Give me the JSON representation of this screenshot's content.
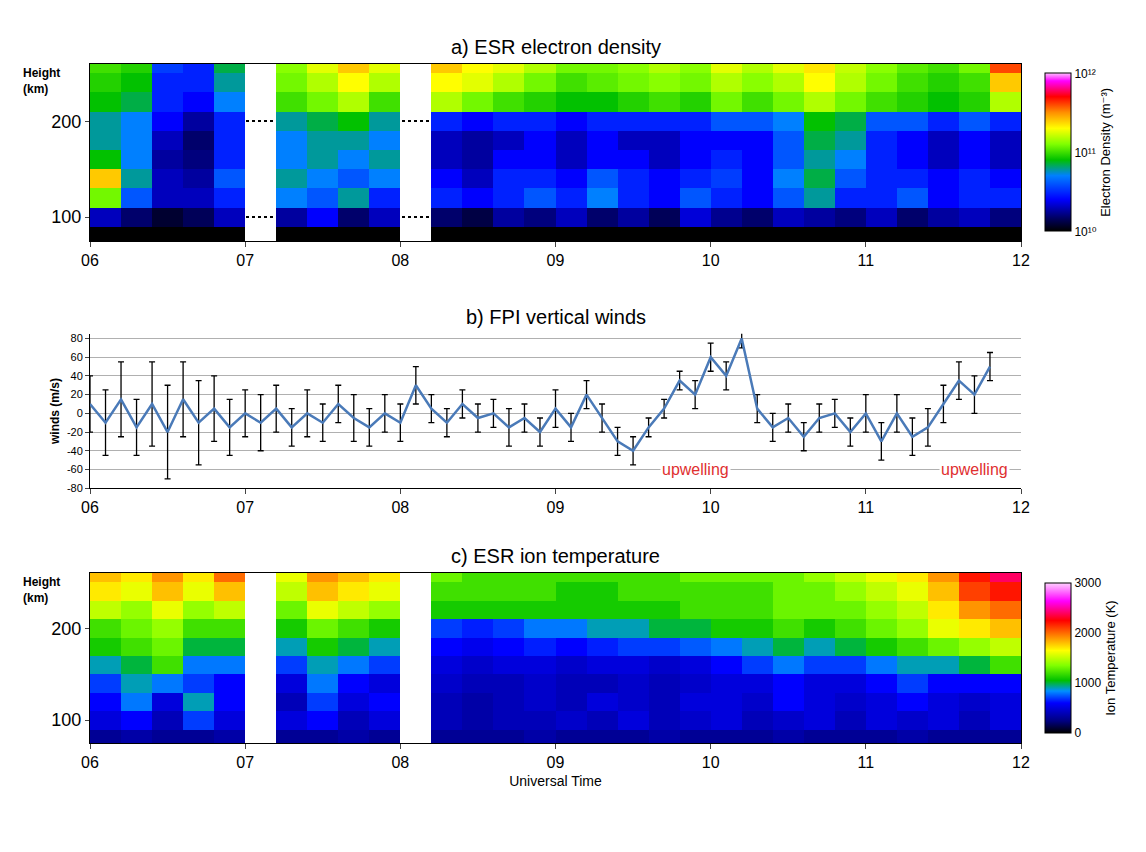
{
  "chart_data": [
    {
      "type": "heatmap",
      "title": "a) ESR electron density",
      "ylabel": "Height (km)",
      "x": [
        6.1,
        6.3,
        6.5,
        6.7,
        6.9,
        7.1,
        7.3,
        7.5,
        7.7,
        7.9,
        8.1,
        8.3,
        8.5,
        8.7,
        8.9,
        9.1,
        9.3,
        9.5,
        9.7,
        9.9,
        10.1,
        10.3,
        10.5,
        10.7,
        10.9,
        11.1,
        11.3,
        11.5,
        11.7,
        11.9
      ],
      "y": [
        80,
        100,
        120,
        140,
        160,
        180,
        200,
        220,
        240,
        260
      ],
      "z": [
        [
          8000000000.0,
          9000000000.0,
          7000000000.0,
          8000000000.0,
          9000000000.0,
          null,
          8000000000.0,
          9000000000.0,
          8000000000.0,
          9000000000.0,
          null,
          8000000000.0,
          7000000000.0,
          9000000000.0,
          8000000000.0,
          9000000000.0,
          8000000000.0,
          7000000000.0,
          8000000000.0,
          9000000000.0,
          8000000000.0,
          9000000000.0,
          8000000000.0,
          7000000000.0,
          9000000000.0,
          8000000000.0,
          9000000000.0,
          8000000000.0,
          8000000000.0,
          9000000000.0
        ],
        [
          20000000000.0,
          15000000000.0,
          12000000000.0,
          14000000000.0,
          20000000000.0,
          null,
          18000000000.0,
          25000000000.0,
          15000000000.0,
          20000000000.0,
          null,
          15000000000.0,
          13000000000.0,
          18000000000.0,
          16000000000.0,
          20000000000.0,
          15000000000.0,
          18000000000.0,
          14000000000.0,
          22000000000.0,
          17000000000.0,
          15000000000.0,
          20000000000.0,
          18000000000.0,
          16000000000.0,
          20000000000.0,
          15000000000.0,
          18000000000.0,
          20000000000.0,
          16000000000.0
        ],
        [
          120000000000.0,
          40000000000.0,
          20000000000.0,
          20000000000.0,
          30000000000.0,
          null,
          50000000000.0,
          40000000000.0,
          60000000000.0,
          30000000000.0,
          null,
          30000000000.0,
          25000000000.0,
          30000000000.0,
          40000000000.0,
          30000000000.0,
          50000000000.0,
          30000000000.0,
          25000000000.0,
          40000000000.0,
          30000000000.0,
          25000000000.0,
          40000000000.0,
          60000000000.0,
          30000000000.0,
          30000000000.0,
          40000000000.0,
          25000000000.0,
          30000000000.0,
          30000000000.0
        ],
        [
          250000000000.0,
          60000000000.0,
          20000000000.0,
          18000000000.0,
          40000000000.0,
          null,
          60000000000.0,
          50000000000.0,
          40000000000.0,
          50000000000.0,
          null,
          25000000000.0,
          20000000000.0,
          30000000000.0,
          30000000000.0,
          25000000000.0,
          40000000000.0,
          30000000000.0,
          25000000000.0,
          30000000000.0,
          35000000000.0,
          25000000000.0,
          50000000000.0,
          70000000000.0,
          40000000000.0,
          30000000000.0,
          30000000000.0,
          25000000000.0,
          30000000000.0,
          25000000000.0
        ],
        [
          80000000000.0,
          50000000000.0,
          18000000000.0,
          16000000000.0,
          30000000000.0,
          null,
          50000000000.0,
          60000000000.0,
          50000000000.0,
          60000000000.0,
          null,
          20000000000.0,
          18000000000.0,
          25000000000.0,
          25000000000.0,
          20000000000.0,
          25000000000.0,
          25000000000.0,
          20000000000.0,
          25000000000.0,
          30000000000.0,
          25000000000.0,
          40000000000.0,
          60000000000.0,
          50000000000.0,
          30000000000.0,
          25000000000.0,
          20000000000.0,
          25000000000.0,
          20000000000.0
        ],
        [
          60000000000.0,
          50000000000.0,
          20000000000.0,
          15000000000.0,
          30000000000.0,
          null,
          50000000000.0,
          60000000000.0,
          60000000000.0,
          50000000000.0,
          null,
          20000000000.0,
          18000000000.0,
          20000000000.0,
          25000000000.0,
          20000000000.0,
          25000000000.0,
          20000000000.0,
          20000000000.0,
          25000000000.0,
          25000000000.0,
          25000000000.0,
          40000000000.0,
          70000000000.0,
          60000000000.0,
          30000000000.0,
          25000000000.0,
          20000000000.0,
          25000000000.0,
          20000000000.0
        ],
        [
          60000000000.0,
          50000000000.0,
          25000000000.0,
          18000000000.0,
          30000000000.0,
          null,
          60000000000.0,
          70000000000.0,
          80000000000.0,
          60000000000.0,
          null,
          30000000000.0,
          25000000000.0,
          30000000000.0,
          30000000000.0,
          25000000000.0,
          30000000000.0,
          30000000000.0,
          30000000000.0,
          30000000000.0,
          40000000000.0,
          40000000000.0,
          50000000000.0,
          80000000000.0,
          70000000000.0,
          40000000000.0,
          40000000000.0,
          30000000000.0,
          40000000000.0,
          30000000000.0
        ],
        [
          80000000000.0,
          70000000000.0,
          30000000000.0,
          25000000000.0,
          50000000000.0,
          null,
          100000000000.0,
          120000000000.0,
          150000000000.0,
          100000000000.0,
          null,
          150000000000.0,
          120000000000.0,
          100000000000.0,
          90000000000.0,
          80000000000.0,
          80000000000.0,
          90000000000.0,
          100000000000.0,
          90000000000.0,
          120000000000.0,
          100000000000.0,
          120000000000.0,
          150000000000.0,
          120000000000.0,
          100000000000.0,
          90000000000.0,
          80000000000.0,
          90000000000.0,
          150000000000.0
        ],
        [
          90000000000.0,
          80000000000.0,
          30000000000.0,
          30000000000.0,
          60000000000.0,
          null,
          120000000000.0,
          150000000000.0,
          200000000000.0,
          150000000000.0,
          null,
          200000000000.0,
          180000000000.0,
          150000000000.0,
          120000000000.0,
          100000000000.0,
          110000000000.0,
          120000000000.0,
          130000000000.0,
          120000000000.0,
          150000000000.0,
          130000000000.0,
          150000000000.0,
          200000000000.0,
          150000000000.0,
          120000000000.0,
          100000000000.0,
          90000000000.0,
          100000000000.0,
          250000000000.0
        ],
        [
          100000000000.0,
          90000000000.0,
          35000000000.0,
          30000000000.0,
          70000000000.0,
          null,
          130000000000.0,
          180000000000.0,
          250000000000.0,
          180000000000.0,
          null,
          250000000000.0,
          200000000000.0,
          180000000000.0,
          150000000000.0,
          120000000000.0,
          120000000000.0,
          130000000000.0,
          150000000000.0,
          130000000000.0,
          180000000000.0,
          150000000000.0,
          180000000000.0,
          220000000000.0,
          160000000000.0,
          130000000000.0,
          110000000000.0,
          100000000000.0,
          120000000000.0,
          400000000000.0
        ]
      ],
      "xlim": [
        6,
        12
      ],
      "xticks": [
        {
          "value": 6,
          "label": "06"
        },
        {
          "value": 7,
          "label": "07"
        },
        {
          "value": 8,
          "label": "08"
        },
        {
          "value": 9,
          "label": "09"
        },
        10,
        11,
        12
      ],
      "ylim": [
        75,
        260
      ],
      "yticks": [
        100,
        200
      ],
      "grid": true,
      "colorbar": {
        "title": "Electron Density (m⁻³)",
        "log": true,
        "range": [
          10000000000.0,
          1000000000000.0
        ],
        "ticks": [
          {
            "value": 10000000000.0,
            "label": "10¹⁰"
          },
          {
            "value": 100000000000.0,
            "label": "10¹¹"
          },
          {
            "value": 1000000000000.0,
            "label": "10¹²"
          }
        ]
      }
    },
    {
      "type": "line",
      "title": "b) FPI vertical winds",
      "ylabel": "winds (m/s)",
      "color": "#4a7ab8",
      "x": [
        6.0,
        6.1,
        6.2,
        6.3,
        6.4,
        6.5,
        6.6,
        6.7,
        6.8,
        6.9,
        7.0,
        7.1,
        7.2,
        7.3,
        7.4,
        7.5,
        7.6,
        7.7,
        7.8,
        7.9,
        8.0,
        8.1,
        8.2,
        8.3,
        8.4,
        8.5,
        8.6,
        8.7,
        8.8,
        8.9,
        9.0,
        9.1,
        9.2,
        9.3,
        9.4,
        9.5,
        9.6,
        9.7,
        9.8,
        9.9,
        10.0,
        10.1,
        10.2,
        10.3,
        10.4,
        10.5,
        10.6,
        10.7,
        10.8,
        10.9,
        11.0,
        11.1,
        11.2,
        11.3,
        11.4,
        11.5,
        11.6,
        11.7,
        11.8
      ],
      "values": [
        10,
        -10,
        15,
        -15,
        10,
        -20,
        15,
        -10,
        5,
        -15,
        0,
        -10,
        5,
        -15,
        0,
        -10,
        10,
        -5,
        -15,
        0,
        -10,
        30,
        5,
        -10,
        10,
        -5,
        0,
        -15,
        -5,
        -20,
        5,
        -15,
        20,
        -5,
        -30,
        -40,
        -15,
        5,
        35,
        20,
        60,
        40,
        80,
        5,
        -15,
        -5,
        -25,
        -5,
        0,
        -20,
        0,
        -30,
        0,
        -25,
        -15,
        10,
        35,
        20,
        50
      ],
      "errors": [
        30,
        35,
        40,
        30,
        45,
        50,
        40,
        45,
        35,
        30,
        25,
        30,
        25,
        20,
        25,
        20,
        20,
        25,
        20,
        20,
        20,
        20,
        15,
        15,
        15,
        15,
        15,
        20,
        15,
        15,
        20,
        15,
        15,
        15,
        15,
        15,
        10,
        10,
        10,
        15,
        15,
        15,
        10,
        15,
        15,
        15,
        15,
        15,
        15,
        15,
        20,
        20,
        20,
        20,
        20,
        20,
        20,
        20,
        15
      ],
      "xlim": [
        6,
        12
      ],
      "xticks": [
        {
          "value": 6,
          "label": "06"
        },
        {
          "value": 7,
          "label": "07"
        },
        {
          "value": 8,
          "label": "08"
        },
        {
          "value": 9,
          "label": "09"
        },
        10,
        11,
        12
      ],
      "ylim": [
        -80,
        85
      ],
      "yticks": [
        -80,
        -60,
        -40,
        -20,
        0,
        20,
        40,
        60,
        80
      ],
      "grid": true,
      "annotations": [
        {
          "text": "upwelling",
          "x": 9.9,
          "y": -60,
          "color": "#e03030"
        },
        {
          "text": "upwelling",
          "x": 11.7,
          "y": -60,
          "color": "#e03030"
        }
      ]
    },
    {
      "type": "heatmap",
      "title": "c) ESR ion temperature",
      "ylabel": "Height (km)",
      "xlabel": "Universal Time",
      "x": [
        6.1,
        6.3,
        6.5,
        6.7,
        6.9,
        7.1,
        7.3,
        7.5,
        7.7,
        7.9,
        8.1,
        8.3,
        8.5,
        8.7,
        8.9,
        9.1,
        9.3,
        9.5,
        9.7,
        9.9,
        10.1,
        10.3,
        10.5,
        10.7,
        10.9,
        11.1,
        11.3,
        11.5,
        11.7,
        11.9
      ],
      "y": [
        80,
        100,
        120,
        140,
        160,
        180,
        200,
        220,
        240,
        260
      ],
      "z": [
        [
          300,
          350,
          300,
          300,
          350,
          null,
          300,
          300,
          350,
          300,
          null,
          300,
          300,
          300,
          350,
          300,
          300,
          300,
          350,
          300,
          300,
          300,
          350,
          300,
          300,
          300,
          350,
          300,
          300,
          300
        ],
        [
          500,
          600,
          400,
          700,
          500,
          null,
          500,
          600,
          400,
          500,
          null,
          400,
          350,
          400,
          400,
          450,
          400,
          500,
          400,
          450,
          500,
          400,
          450,
          500,
          400,
          500,
          450,
          500,
          400,
          500
        ],
        [
          600,
          800,
          500,
          900,
          600,
          null,
          400,
          700,
          500,
          600,
          null,
          400,
          350,
          400,
          450,
          400,
          500,
          450,
          400,
          500,
          500,
          450,
          600,
          500,
          450,
          500,
          600,
          500,
          450,
          500
        ],
        [
          700,
          900,
          800,
          700,
          600,
          null,
          500,
          800,
          600,
          500,
          null,
          450,
          400,
          400,
          450,
          400,
          400,
          450,
          400,
          450,
          500,
          500,
          600,
          500,
          500,
          600,
          700,
          600,
          600,
          600
        ],
        [
          900,
          1000,
          1200,
          800,
          800,
          null,
          700,
          900,
          800,
          700,
          null,
          500,
          450,
          500,
          500,
          450,
          500,
          500,
          450,
          500,
          600,
          700,
          800,
          700,
          700,
          800,
          900,
          900,
          1000,
          1200
        ],
        [
          1100,
          1200,
          1300,
          1000,
          1000,
          null,
          900,
          1100,
          1000,
          900,
          null,
          600,
          550,
          600,
          650,
          600,
          650,
          700,
          700,
          750,
          800,
          900,
          1000,
          900,
          1000,
          1100,
          1200,
          1300,
          1400,
          1500
        ],
        [
          1200,
          1300,
          1400,
          1200,
          1200,
          null,
          1100,
          1300,
          1200,
          1100,
          null,
          700,
          650,
          700,
          800,
          800,
          900,
          900,
          1000,
          1000,
          1100,
          1100,
          1200,
          1100,
          1200,
          1300,
          1400,
          1600,
          1700,
          1800
        ],
        [
          1500,
          1400,
          1600,
          1400,
          1500,
          null,
          1300,
          1600,
          1500,
          1400,
          null,
          1100,
          1100,
          1100,
          1100,
          1100,
          1100,
          1100,
          1100,
          1200,
          1200,
          1200,
          1300,
          1300,
          1300,
          1400,
          1500,
          1700,
          1900,
          2000
        ],
        [
          1700,
          1600,
          1800,
          1600,
          1800,
          null,
          1500,
          1800,
          1700,
          1600,
          null,
          1200,
          1200,
          1200,
          1200,
          1100,
          1100,
          1200,
          1200,
          1200,
          1200,
          1200,
          1300,
          1300,
          1400,
          1500,
          1600,
          1800,
          2100,
          2200
        ],
        [
          1800,
          1700,
          1900,
          1700,
          2000,
          null,
          1600,
          1900,
          1800,
          1700,
          null,
          1300,
          1200,
          1200,
          1200,
          1200,
          1200,
          1200,
          1200,
          1300,
          1300,
          1300,
          1300,
          1400,
          1500,
          1600,
          1700,
          1900,
          2200,
          2400
        ]
      ],
      "xlim": [
        6,
        12
      ],
      "xticks": [
        {
          "value": 6,
          "label": "06"
        },
        {
          "value": 7,
          "label": "07"
        },
        {
          "value": 8,
          "label": "08"
        },
        {
          "value": 9,
          "label": "09"
        },
        10,
        11,
        12
      ],
      "ylim": [
        75,
        260
      ],
      "yticks": [
        100,
        200
      ],
      "grid": false,
      "colorbar": {
        "title": "Ion Temperature (K)",
        "range": [
          0,
          3000
        ],
        "ticks": [
          0,
          1000,
          2000,
          3000
        ]
      }
    }
  ]
}
